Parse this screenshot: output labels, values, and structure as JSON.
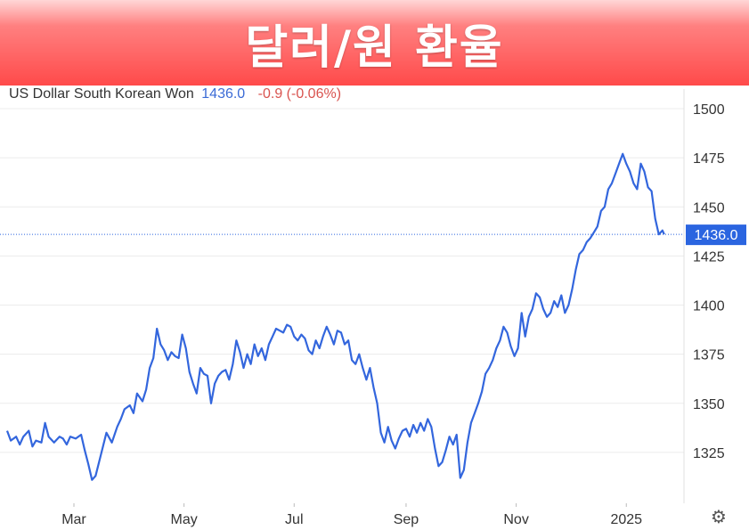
{
  "banner": {
    "title": "달러/원 환율"
  },
  "legend": {
    "name": "US Dollar South Korean Won",
    "value": "1436.0",
    "change": "-0.9 (-0.06%)"
  },
  "colors": {
    "line": "#3366dd",
    "last_label_bg": "#2b65e0",
    "negative": "#d9534f",
    "banner": "#ff4a4a"
  },
  "settings_icon": "gear-icon",
  "chart_data": {
    "type": "line",
    "title": "",
    "xlabel": "",
    "ylabel": "",
    "ylim": [
      1300,
      1505
    ],
    "yticks": [
      1325,
      1350,
      1375,
      1400,
      1425,
      1450,
      1475,
      1500
    ],
    "x_tick_labels": [
      {
        "label": "Mar",
        "date": "2024-03-01"
      },
      {
        "label": "May",
        "date": "2024-05-01"
      },
      {
        "label": "Jul",
        "date": "2024-07-01"
      },
      {
        "label": "Sep",
        "date": "2024-09-01"
      },
      {
        "label": "Nov",
        "date": "2024-11-01"
      },
      {
        "label": "2025",
        "date": "2025-01-01"
      }
    ],
    "xlim": [
      "2024-01-24",
      "2025-01-29"
    ],
    "last_value": "1436.0",
    "last_value_y": 1436,
    "grid": true,
    "series": [
      {
        "name": "US Dollar South Korean Won",
        "points": [
          [
            "2024-01-24",
            1336
          ],
          [
            "2024-01-26",
            1331
          ],
          [
            "2024-01-29",
            1333
          ],
          [
            "2024-01-31",
            1329
          ],
          [
            "2024-02-02",
            1333
          ],
          [
            "2024-02-05",
            1336
          ],
          [
            "2024-02-07",
            1328
          ],
          [
            "2024-02-09",
            1331
          ],
          [
            "2024-02-12",
            1330
          ],
          [
            "2024-02-14",
            1340
          ],
          [
            "2024-02-16",
            1333
          ],
          [
            "2024-02-19",
            1330
          ],
          [
            "2024-02-22",
            1333
          ],
          [
            "2024-02-24",
            1332
          ],
          [
            "2024-02-26",
            1329
          ],
          [
            "2024-02-28",
            1333
          ],
          [
            "2024-03-02",
            1332
          ],
          [
            "2024-03-05",
            1334
          ],
          [
            "2024-03-07",
            1326
          ],
          [
            "2024-03-09",
            1319
          ],
          [
            "2024-03-11",
            1311
          ],
          [
            "2024-03-13",
            1313
          ],
          [
            "2024-03-16",
            1324
          ],
          [
            "2024-03-19",
            1335
          ],
          [
            "2024-03-22",
            1330
          ],
          [
            "2024-03-25",
            1338
          ],
          [
            "2024-03-27",
            1342
          ],
          [
            "2024-03-29",
            1347
          ],
          [
            "2024-04-01",
            1349
          ],
          [
            "2024-04-03",
            1345
          ],
          [
            "2024-04-05",
            1355
          ],
          [
            "2024-04-08",
            1351
          ],
          [
            "2024-04-10",
            1357
          ],
          [
            "2024-04-12",
            1368
          ],
          [
            "2024-04-14",
            1373
          ],
          [
            "2024-04-16",
            1388
          ],
          [
            "2024-04-18",
            1380
          ],
          [
            "2024-04-20",
            1377
          ],
          [
            "2024-04-22",
            1372
          ],
          [
            "2024-04-24",
            1376
          ],
          [
            "2024-04-26",
            1374
          ],
          [
            "2024-04-28",
            1373
          ],
          [
            "2024-04-30",
            1385
          ],
          [
            "2024-05-02",
            1378
          ],
          [
            "2024-05-04",
            1366
          ],
          [
            "2024-05-06",
            1360
          ],
          [
            "2024-05-08",
            1355
          ],
          [
            "2024-05-10",
            1368
          ],
          [
            "2024-05-12",
            1365
          ],
          [
            "2024-05-14",
            1364
          ],
          [
            "2024-05-16",
            1350
          ],
          [
            "2024-05-18",
            1360
          ],
          [
            "2024-05-20",
            1364
          ],
          [
            "2024-05-22",
            1366
          ],
          [
            "2024-05-24",
            1367
          ],
          [
            "2024-05-26",
            1362
          ],
          [
            "2024-05-28",
            1370
          ],
          [
            "2024-05-30",
            1382
          ],
          [
            "2024-06-01",
            1376
          ],
          [
            "2024-06-03",
            1368
          ],
          [
            "2024-06-05",
            1375
          ],
          [
            "2024-06-07",
            1370
          ],
          [
            "2024-06-09",
            1380
          ],
          [
            "2024-06-11",
            1374
          ],
          [
            "2024-06-13",
            1378
          ],
          [
            "2024-06-15",
            1372
          ],
          [
            "2024-06-17",
            1380
          ],
          [
            "2024-06-19",
            1384
          ],
          [
            "2024-06-21",
            1388
          ],
          [
            "2024-06-23",
            1387
          ],
          [
            "2024-06-25",
            1386
          ],
          [
            "2024-06-27",
            1390
          ],
          [
            "2024-06-29",
            1389
          ],
          [
            "2024-07-01",
            1384
          ],
          [
            "2024-07-03",
            1382
          ],
          [
            "2024-07-05",
            1385
          ],
          [
            "2024-07-07",
            1383
          ],
          [
            "2024-07-09",
            1377
          ],
          [
            "2024-07-11",
            1375
          ],
          [
            "2024-07-13",
            1382
          ],
          [
            "2024-07-15",
            1378
          ],
          [
            "2024-07-17",
            1384
          ],
          [
            "2024-07-19",
            1389
          ],
          [
            "2024-07-21",
            1385
          ],
          [
            "2024-07-23",
            1380
          ],
          [
            "2024-07-25",
            1387
          ],
          [
            "2024-07-27",
            1386
          ],
          [
            "2024-07-29",
            1380
          ],
          [
            "2024-07-31",
            1382
          ],
          [
            "2024-08-02",
            1372
          ],
          [
            "2024-08-04",
            1370
          ],
          [
            "2024-08-06",
            1375
          ],
          [
            "2024-08-08",
            1368
          ],
          [
            "2024-08-10",
            1362
          ],
          [
            "2024-08-12",
            1368
          ],
          [
            "2024-08-14",
            1358
          ],
          [
            "2024-08-16",
            1350
          ],
          [
            "2024-08-18",
            1335
          ],
          [
            "2024-08-20",
            1330
          ],
          [
            "2024-08-22",
            1338
          ],
          [
            "2024-08-24",
            1331
          ],
          [
            "2024-08-26",
            1327
          ],
          [
            "2024-08-28",
            1332
          ],
          [
            "2024-08-30",
            1336
          ],
          [
            "2024-09-01",
            1337
          ],
          [
            "2024-09-03",
            1333
          ],
          [
            "2024-09-05",
            1339
          ],
          [
            "2024-09-07",
            1335
          ],
          [
            "2024-09-09",
            1340
          ],
          [
            "2024-09-11",
            1336
          ],
          [
            "2024-09-13",
            1342
          ],
          [
            "2024-09-15",
            1338
          ],
          [
            "2024-09-17",
            1327
          ],
          [
            "2024-09-19",
            1318
          ],
          [
            "2024-09-21",
            1320
          ],
          [
            "2024-09-23",
            1326
          ],
          [
            "2024-09-25",
            1333
          ],
          [
            "2024-09-27",
            1329
          ],
          [
            "2024-09-29",
            1334
          ],
          [
            "2024-10-01",
            1312
          ],
          [
            "2024-10-03",
            1316
          ],
          [
            "2024-10-05",
            1330
          ],
          [
            "2024-10-07",
            1340
          ],
          [
            "2024-10-09",
            1345
          ],
          [
            "2024-10-11",
            1350
          ],
          [
            "2024-10-13",
            1356
          ],
          [
            "2024-10-15",
            1365
          ],
          [
            "2024-10-17",
            1368
          ],
          [
            "2024-10-19",
            1372
          ],
          [
            "2024-10-21",
            1378
          ],
          [
            "2024-10-23",
            1382
          ],
          [
            "2024-10-25",
            1389
          ],
          [
            "2024-10-27",
            1386
          ],
          [
            "2024-10-29",
            1379
          ],
          [
            "2024-10-31",
            1374
          ],
          [
            "2024-11-02",
            1378
          ],
          [
            "2024-11-04",
            1396
          ],
          [
            "2024-11-06",
            1384
          ],
          [
            "2024-11-08",
            1394
          ],
          [
            "2024-11-10",
            1398
          ],
          [
            "2024-11-12",
            1406
          ],
          [
            "2024-11-14",
            1404
          ],
          [
            "2024-11-16",
            1398
          ],
          [
            "2024-11-18",
            1394
          ],
          [
            "2024-11-20",
            1396
          ],
          [
            "2024-11-22",
            1402
          ],
          [
            "2024-11-24",
            1399
          ],
          [
            "2024-11-26",
            1405
          ],
          [
            "2024-11-28",
            1396
          ],
          [
            "2024-11-30",
            1400
          ],
          [
            "2024-12-02",
            1408
          ],
          [
            "2024-12-04",
            1418
          ],
          [
            "2024-12-06",
            1426
          ],
          [
            "2024-12-08",
            1428
          ],
          [
            "2024-12-10",
            1432
          ],
          [
            "2024-12-12",
            1434
          ],
          [
            "2024-12-14",
            1437
          ],
          [
            "2024-12-16",
            1440
          ],
          [
            "2024-12-18",
            1448
          ],
          [
            "2024-12-20",
            1450
          ],
          [
            "2024-12-22",
            1459
          ],
          [
            "2024-12-24",
            1462
          ],
          [
            "2024-12-26",
            1467
          ],
          [
            "2024-12-28",
            1472
          ],
          [
            "2024-12-30",
            1477
          ],
          [
            "2025-01-01",
            1472
          ],
          [
            "2025-01-03",
            1468
          ],
          [
            "2025-01-05",
            1462
          ],
          [
            "2025-01-07",
            1459
          ],
          [
            "2025-01-09",
            1472
          ],
          [
            "2025-01-11",
            1468
          ],
          [
            "2025-01-13",
            1460
          ],
          [
            "2025-01-15",
            1458
          ],
          [
            "2025-01-17",
            1444
          ],
          [
            "2025-01-19",
            1436
          ],
          [
            "2025-01-21",
            1438
          ],
          [
            "2025-01-22",
            1436
          ]
        ]
      }
    ]
  }
}
